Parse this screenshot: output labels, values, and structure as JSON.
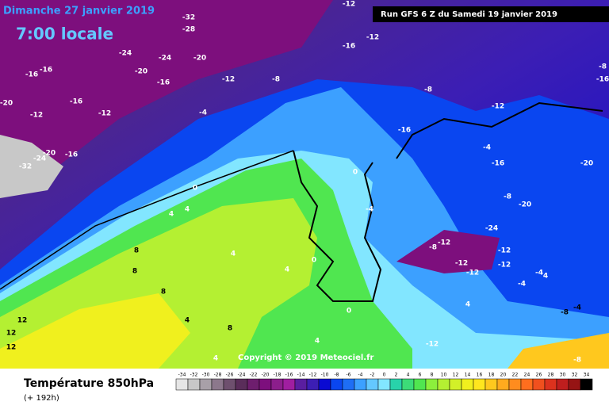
{
  "header": {
    "date": "Dimanche 27 janvier 2019",
    "time": "7:00 locale",
    "run": "Run GFS 6 Z du Samedi 19 janvier 2019",
    "copyright": "Copyright © 2019 Meteociel.fr"
  },
  "footer": {
    "title": "Température 850hPa",
    "lead": "(+ 192h)"
  },
  "scale": {
    "labels": [
      -34,
      -32,
      -30,
      -28,
      -26,
      -24,
      -22,
      -20,
      -18,
      -16,
      -14,
      -12,
      -10,
      -8,
      -6,
      -4,
      -2,
      0,
      2,
      4,
      6,
      8,
      10,
      12,
      14,
      16,
      18,
      20,
      22,
      24,
      26,
      28,
      30,
      32,
      34
    ],
    "colors": [
      "#e6e6e6",
      "#c8c8c8",
      "#a8a0a8",
      "#8c788c",
      "#6e506e",
      "#5a2d5a",
      "#6e1e6e",
      "#7d0f7d",
      "#8c1e8c",
      "#a01ea0",
      "#5a1ea0",
      "#3c1eb4",
      "#0a0ad2",
      "#0a46f0",
      "#1e6ef5",
      "#3ca0ff",
      "#64c8ff",
      "#82e6ff",
      "#28d2aa",
      "#3cdc78",
      "#50e650",
      "#8cf03c",
      "#b4f032",
      "#d2f028",
      "#f0f01e",
      "#ffe61e",
      "#ffc81e",
      "#ffaa1e",
      "#ff8c1e",
      "#ff6e1e",
      "#f0501e",
      "#dc321e",
      "#be1e1e",
      "#961414",
      "#000000"
    ]
  },
  "map_labels": [
    -12,
    -32,
    -28,
    -24,
    -24,
    -20,
    -20,
    -16,
    -16,
    -16,
    -12,
    -8,
    -20,
    -16,
    -12,
    -12,
    -4,
    -20,
    -16,
    -24,
    -32,
    0,
    4,
    4,
    4,
    4,
    0,
    0,
    -4,
    8,
    8,
    8,
    4,
    8,
    12,
    12,
    12,
    0,
    4,
    4,
    -8,
    -4,
    -8,
    -12,
    -4,
    -16,
    -16,
    -8,
    -20,
    -20,
    -24,
    -12,
    -8,
    -12,
    -12,
    -12,
    -12,
    -4,
    -4,
    4,
    4,
    -12,
    -8,
    -8,
    -16,
    -16,
    -12
  ]
}
